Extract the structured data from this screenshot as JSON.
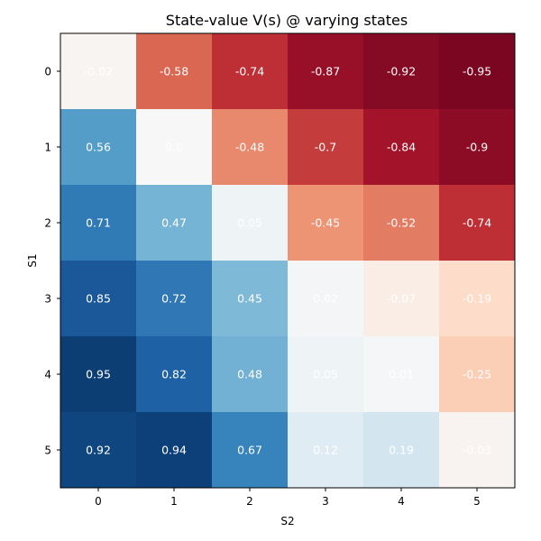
{
  "chart_data": {
    "type": "heatmap",
    "title": "State-value V(s) @ varying states",
    "xlabel": "S2",
    "ylabel": "S1",
    "x_categories": [
      "0",
      "1",
      "2",
      "3",
      "4",
      "5"
    ],
    "y_categories": [
      "0",
      "1",
      "2",
      "3",
      "4",
      "5"
    ],
    "color_range": [
      -1,
      1
    ],
    "colormap": "RdBu",
    "values": [
      [
        -0.02,
        -0.58,
        -0.74,
        -0.87,
        -0.92,
        -0.95
      ],
      [
        0.56,
        0.0,
        -0.48,
        -0.7,
        -0.84,
        -0.9
      ],
      [
        0.71,
        0.47,
        0.05,
        -0.45,
        -0.52,
        -0.74
      ],
      [
        0.85,
        0.72,
        0.45,
        0.02,
        -0.07,
        -0.19
      ],
      [
        0.95,
        0.82,
        0.48,
        0.05,
        0.01,
        -0.25
      ],
      [
        0.92,
        0.94,
        0.67,
        0.12,
        0.19,
        -0.03
      ]
    ],
    "cell_labels": [
      [
        "-0.02",
        "-0.58",
        "-0.74",
        "-0.87",
        "-0.92",
        "-0.95"
      ],
      [
        "0.56",
        "0.0",
        "-0.48",
        "-0.7",
        "-0.84",
        "-0.9"
      ],
      [
        "0.71",
        "0.47",
        "0.05",
        "-0.45",
        "-0.52",
        "-0.74"
      ],
      [
        "0.85",
        "0.72",
        "0.45",
        "0.02",
        "-0.07",
        "-0.19"
      ],
      [
        "0.95",
        "0.82",
        "0.48",
        "0.05",
        "0.01",
        "-0.25"
      ],
      [
        "0.92",
        "0.94",
        "0.67",
        "0.12",
        "0.19",
        "-0.03"
      ]
    ],
    "grid": false,
    "legend": "none"
  }
}
